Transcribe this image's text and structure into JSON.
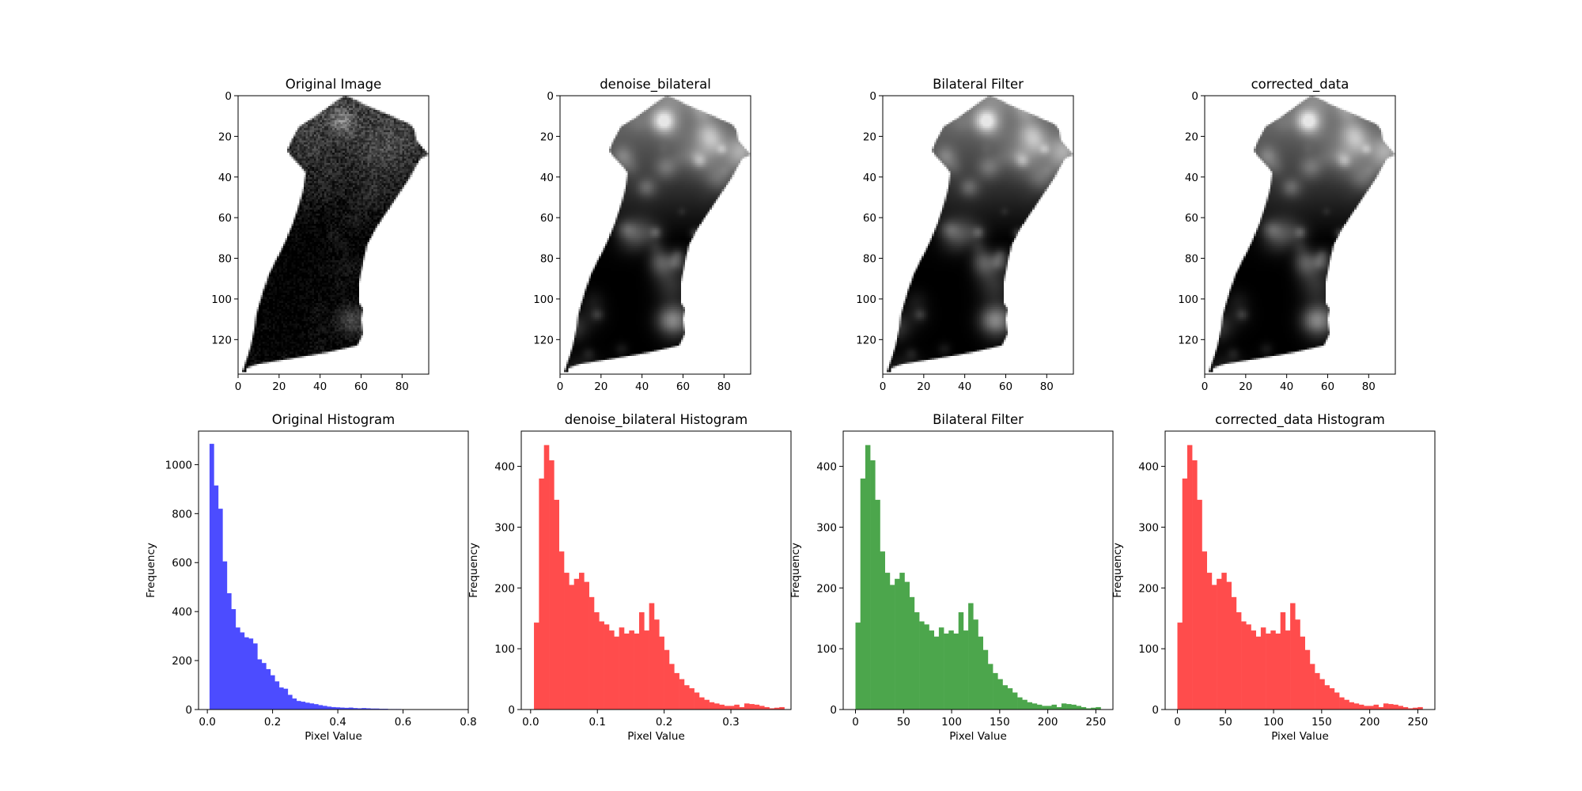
{
  "figure": {
    "background": "#ffffff",
    "panels": [
      {
        "title": "Original Image",
        "cmap": "gray",
        "seed": 11,
        "smooth": 0
      },
      {
        "title": "denoise_bilateral",
        "cmap": "gray",
        "seed": 23,
        "smooth": 1
      },
      {
        "title": "Bilateral Filter",
        "cmap": "gray",
        "seed": 23,
        "smooth": 1
      },
      {
        "title": "corrected_data",
        "cmap": "gray",
        "seed": 23,
        "smooth": 1
      }
    ]
  },
  "chart_data": [
    {
      "type": "image",
      "title": "Original Image",
      "xlim": [
        0,
        93
      ],
      "ylim": [
        137,
        0
      ],
      "xticks": [
        0,
        20,
        40,
        60,
        80
      ],
      "yticks": [
        0,
        20,
        40,
        60,
        80,
        100,
        120
      ],
      "mask_outline": [
        [
          52,
          0
        ],
        [
          55,
          1
        ],
        [
          61,
          4
        ],
        [
          84,
          14
        ],
        [
          86,
          17
        ],
        [
          87,
          22
        ],
        [
          93,
          29
        ],
        [
          89,
          31
        ],
        [
          86,
          36
        ],
        [
          84,
          40
        ],
        [
          80,
          46
        ],
        [
          74,
          55
        ],
        [
          68,
          64
        ],
        [
          63,
          73
        ],
        [
          61,
          82
        ],
        [
          59,
          92
        ],
        [
          59,
          102
        ],
        [
          61,
          105
        ],
        [
          60,
          110
        ],
        [
          61,
          117
        ],
        [
          58,
          123
        ],
        [
          45,
          126
        ],
        [
          28,
          129
        ],
        [
          10,
          132
        ],
        [
          4,
          134
        ],
        [
          4,
          136
        ],
        [
          2,
          136
        ],
        [
          4,
          130
        ],
        [
          6,
          124
        ],
        [
          8,
          115
        ],
        [
          9,
          107
        ],
        [
          12,
          97
        ],
        [
          15,
          88
        ],
        [
          19,
          80
        ],
        [
          23,
          72
        ],
        [
          27,
          62
        ],
        [
          30,
          53
        ],
        [
          32,
          45
        ],
        [
          33,
          38
        ],
        [
          30,
          34
        ],
        [
          26,
          30
        ],
        [
          24,
          27
        ],
        [
          26,
          22
        ],
        [
          30,
          15
        ],
        [
          38,
          10
        ],
        [
          46,
          4
        ]
      ]
    },
    {
      "type": "image",
      "title": "denoise_bilateral",
      "xlim": [
        0,
        93
      ],
      "ylim": [
        137,
        0
      ],
      "xticks": [
        0,
        20,
        40,
        60,
        80
      ],
      "yticks": [
        0,
        20,
        40,
        60,
        80,
        100,
        120
      ],
      "mask_outline": [
        [
          52,
          0
        ],
        [
          55,
          1
        ],
        [
          61,
          4
        ],
        [
          84,
          14
        ],
        [
          86,
          17
        ],
        [
          87,
          22
        ],
        [
          93,
          29
        ],
        [
          89,
          31
        ],
        [
          86,
          36
        ],
        [
          84,
          40
        ],
        [
          80,
          46
        ],
        [
          74,
          55
        ],
        [
          68,
          64
        ],
        [
          63,
          73
        ],
        [
          61,
          82
        ],
        [
          59,
          92
        ],
        [
          59,
          102
        ],
        [
          61,
          105
        ],
        [
          60,
          110
        ],
        [
          61,
          117
        ],
        [
          58,
          123
        ],
        [
          45,
          126
        ],
        [
          28,
          129
        ],
        [
          10,
          132
        ],
        [
          4,
          134
        ],
        [
          4,
          136
        ],
        [
          2,
          136
        ],
        [
          4,
          130
        ],
        [
          6,
          124
        ],
        [
          8,
          115
        ],
        [
          9,
          107
        ],
        [
          12,
          97
        ],
        [
          15,
          88
        ],
        [
          19,
          80
        ],
        [
          23,
          72
        ],
        [
          27,
          62
        ],
        [
          30,
          53
        ],
        [
          32,
          45
        ],
        [
          33,
          38
        ],
        [
          30,
          34
        ],
        [
          26,
          30
        ],
        [
          24,
          27
        ],
        [
          26,
          22
        ],
        [
          30,
          15
        ],
        [
          38,
          10
        ],
        [
          46,
          4
        ]
      ]
    },
    {
      "type": "image",
      "title": "Bilateral Filter",
      "xlim": [
        0,
        93
      ],
      "ylim": [
        137,
        0
      ],
      "xticks": [
        0,
        20,
        40,
        60,
        80
      ],
      "yticks": [
        0,
        20,
        40,
        60,
        80,
        100,
        120
      ],
      "mask_outline": [
        [
          52,
          0
        ],
        [
          55,
          1
        ],
        [
          61,
          4
        ],
        [
          84,
          14
        ],
        [
          86,
          17
        ],
        [
          87,
          22
        ],
        [
          93,
          29
        ],
        [
          89,
          31
        ],
        [
          86,
          36
        ],
        [
          84,
          40
        ],
        [
          80,
          46
        ],
        [
          74,
          55
        ],
        [
          68,
          64
        ],
        [
          63,
          73
        ],
        [
          61,
          82
        ],
        [
          59,
          92
        ],
        [
          59,
          102
        ],
        [
          61,
          105
        ],
        [
          60,
          110
        ],
        [
          61,
          117
        ],
        [
          58,
          123
        ],
        [
          45,
          126
        ],
        [
          28,
          129
        ],
        [
          10,
          132
        ],
        [
          4,
          134
        ],
        [
          4,
          136
        ],
        [
          2,
          136
        ],
        [
          4,
          130
        ],
        [
          6,
          124
        ],
        [
          8,
          115
        ],
        [
          9,
          107
        ],
        [
          12,
          97
        ],
        [
          15,
          88
        ],
        [
          19,
          80
        ],
        [
          23,
          72
        ],
        [
          27,
          62
        ],
        [
          30,
          53
        ],
        [
          32,
          45
        ],
        [
          33,
          38
        ],
        [
          30,
          34
        ],
        [
          26,
          30
        ],
        [
          24,
          27
        ],
        [
          26,
          22
        ],
        [
          30,
          15
        ],
        [
          38,
          10
        ],
        [
          46,
          4
        ]
      ]
    },
    {
      "type": "image",
      "title": "corrected_data",
      "xlim": [
        0,
        93
      ],
      "ylim": [
        137,
        0
      ],
      "xticks": [
        0,
        20,
        40,
        60,
        80
      ],
      "yticks": [
        0,
        20,
        40,
        60,
        80,
        100,
        120
      ],
      "mask_outline": [
        [
          52,
          0
        ],
        [
          55,
          1
        ],
        [
          61,
          4
        ],
        [
          84,
          14
        ],
        [
          86,
          17
        ],
        [
          87,
          22
        ],
        [
          93,
          29
        ],
        [
          89,
          31
        ],
        [
          86,
          36
        ],
        [
          84,
          40
        ],
        [
          80,
          46
        ],
        [
          74,
          55
        ],
        [
          68,
          64
        ],
        [
          63,
          73
        ],
        [
          61,
          82
        ],
        [
          59,
          92
        ],
        [
          59,
          102
        ],
        [
          61,
          105
        ],
        [
          60,
          110
        ],
        [
          61,
          117
        ],
        [
          58,
          123
        ],
        [
          45,
          126
        ],
        [
          28,
          129
        ],
        [
          10,
          132
        ],
        [
          4,
          134
        ],
        [
          4,
          136
        ],
        [
          2,
          136
        ],
        [
          4,
          130
        ],
        [
          6,
          124
        ],
        [
          8,
          115
        ],
        [
          9,
          107
        ],
        [
          12,
          97
        ],
        [
          15,
          88
        ],
        [
          19,
          80
        ],
        [
          23,
          72
        ],
        [
          27,
          62
        ],
        [
          30,
          53
        ],
        [
          32,
          45
        ],
        [
          33,
          38
        ],
        [
          30,
          34
        ],
        [
          26,
          30
        ],
        [
          24,
          27
        ],
        [
          26,
          22
        ],
        [
          30,
          15
        ],
        [
          38,
          10
        ],
        [
          46,
          4
        ]
      ]
    },
    {
      "type": "histogram",
      "title": "Original Histogram",
      "xlabel": "Pixel Value",
      "ylabel": "Frequency",
      "color": "#4c4cff",
      "bin_width": 0.0133,
      "xlim": [
        -0.027,
        0.8
      ],
      "ylim": [
        0,
        1137
      ],
      "xticks": [
        0.0,
        0.2,
        0.4,
        0.6,
        0.8
      ],
      "xtick_labels": [
        "0.0",
        "0.2",
        "0.4",
        "0.6",
        "0.8"
      ],
      "yticks": [
        0,
        200,
        400,
        600,
        800,
        1000
      ],
      "bins_start": [
        0.0067,
        0.02,
        0.0333,
        0.0467,
        0.06,
        0.0733,
        0.0867,
        0.1,
        0.1133,
        0.1267,
        0.14,
        0.1533,
        0.1667,
        0.18,
        0.1933,
        0.2067,
        0.22,
        0.2333,
        0.2467,
        0.26,
        0.2733,
        0.2867,
        0.3,
        0.3133,
        0.3267,
        0.34,
        0.3533,
        0.3667,
        0.38,
        0.3933,
        0.4067,
        0.42,
        0.4333,
        0.4467,
        0.46,
        0.4733,
        0.4867,
        0.5,
        0.5133,
        0.5267,
        0.54,
        0.5533,
        0.5667,
        0.58,
        0.5933,
        0.6067,
        0.62,
        0.6333,
        0.6467,
        0.66,
        0.6733,
        0.6867,
        0.7,
        0.7133,
        0.7267,
        0.74,
        0.7533
      ],
      "counts": [
        1085,
        915,
        820,
        605,
        475,
        410,
        335,
        315,
        295,
        290,
        270,
        205,
        190,
        165,
        140,
        115,
        90,
        85,
        60,
        45,
        35,
        32,
        28,
        25,
        22,
        18,
        15,
        12,
        10,
        9,
        8,
        7,
        8,
        6,
        5,
        6,
        5,
        4,
        4,
        3,
        3,
        2,
        2,
        2,
        1,
        1,
        1,
        1,
        0,
        1,
        0,
        0,
        1,
        0,
        0,
        0,
        1
      ]
    },
    {
      "type": "histogram",
      "title": "denoise_bilateral Histogram",
      "xlabel": "Pixel Value",
      "ylabel": "Frequency",
      "color": "#ff4c4c",
      "bin_width": 0.0075,
      "xlim": [
        -0.014,
        0.39
      ],
      "ylim": [
        0,
        458
      ],
      "xticks": [
        0.0,
        0.1,
        0.2,
        0.3
      ],
      "xtick_labels": [
        "0.0",
        "0.1",
        "0.2",
        "0.3"
      ],
      "yticks": [
        0,
        100,
        200,
        300,
        400
      ],
      "bins_start": [
        0.005,
        0.0125,
        0.02,
        0.0275,
        0.035,
        0.0425,
        0.05,
        0.0575,
        0.065,
        0.0725,
        0.08,
        0.0875,
        0.095,
        0.1025,
        0.11,
        0.1175,
        0.125,
        0.1325,
        0.14,
        0.1475,
        0.155,
        0.1625,
        0.17,
        0.1775,
        0.185,
        0.1925,
        0.2,
        0.2075,
        0.215,
        0.2225,
        0.23,
        0.2375,
        0.245,
        0.2525,
        0.26,
        0.2675,
        0.275,
        0.2825,
        0.29,
        0.2975,
        0.305,
        0.3125,
        0.32,
        0.3275,
        0.335,
        0.3425,
        0.35,
        0.3575,
        0.365,
        0.3725
      ],
      "counts": [
        143,
        380,
        435,
        410,
        345,
        260,
        225,
        205,
        215,
        225,
        210,
        185,
        160,
        145,
        140,
        130,
        120,
        135,
        125,
        130,
        125,
        160,
        130,
        175,
        148,
        120,
        98,
        75,
        60,
        50,
        40,
        35,
        28,
        20,
        16,
        12,
        10,
        8,
        6,
        6,
        8,
        4,
        10,
        9,
        8,
        6,
        4,
        2,
        3,
        4
      ]
    },
    {
      "type": "histogram",
      "title": "Bilateral Filter",
      "xlabel": "Pixel Value",
      "ylabel": "Frequency",
      "color": "#4ca64c",
      "bin_width": 5.1,
      "xlim": [
        -12.75,
        267.75
      ],
      "ylim": [
        0,
        458
      ],
      "xticks": [
        0,
        50,
        100,
        150,
        200,
        250
      ],
      "xtick_labels": [
        "0",
        "50",
        "100",
        "150",
        "200",
        "250"
      ],
      "yticks": [
        0,
        100,
        200,
        300,
        400
      ],
      "bins_start": [
        0,
        5.1,
        10.2,
        15.3,
        20.4,
        25.5,
        30.6,
        35.7,
        40.8,
        45.9,
        51,
        56.1,
        61.2,
        66.3,
        71.4,
        76.5,
        81.6,
        86.7,
        91.8,
        96.9,
        102,
        107.1,
        112.2,
        117.3,
        122.4,
        127.5,
        132.6,
        137.7,
        142.8,
        147.9,
        153,
        158.1,
        163.2,
        168.3,
        173.4,
        178.5,
        183.6,
        188.7,
        193.8,
        198.9,
        204,
        209.1,
        214.2,
        219.3,
        224.4,
        229.5,
        234.6,
        239.7,
        244.8,
        249.9
      ],
      "counts": [
        143,
        380,
        435,
        410,
        345,
        260,
        225,
        205,
        215,
        225,
        210,
        185,
        160,
        145,
        140,
        130,
        120,
        135,
        125,
        130,
        125,
        160,
        130,
        175,
        148,
        120,
        98,
        75,
        60,
        50,
        40,
        35,
        28,
        20,
        16,
        12,
        10,
        8,
        6,
        6,
        8,
        4,
        10,
        9,
        8,
        6,
        4,
        2,
        3,
        4
      ]
    },
    {
      "type": "histogram",
      "title": "corrected_data Histogram",
      "xlabel": "Pixel Value",
      "ylabel": "Frequency",
      "color": "#ff4c4c",
      "bin_width": 5.1,
      "xlim": [
        -12.75,
        267.75
      ],
      "ylim": [
        0,
        458
      ],
      "xticks": [
        0,
        50,
        100,
        150,
        200,
        250
      ],
      "xtick_labels": [
        "0",
        "50",
        "100",
        "150",
        "200",
        "250"
      ],
      "yticks": [
        0,
        100,
        200,
        300,
        400
      ],
      "bins_start": [
        0,
        5.1,
        10.2,
        15.3,
        20.4,
        25.5,
        30.6,
        35.7,
        40.8,
        45.9,
        51,
        56.1,
        61.2,
        66.3,
        71.4,
        76.5,
        81.6,
        86.7,
        91.8,
        96.9,
        102,
        107.1,
        112.2,
        117.3,
        122.4,
        127.5,
        132.6,
        137.7,
        142.8,
        147.9,
        153,
        158.1,
        163.2,
        168.3,
        173.4,
        178.5,
        183.6,
        188.7,
        193.8,
        198.9,
        204,
        209.1,
        214.2,
        219.3,
        224.4,
        229.5,
        234.6,
        239.7,
        244.8,
        249.9
      ],
      "counts": [
        143,
        380,
        435,
        410,
        345,
        260,
        225,
        205,
        215,
        225,
        210,
        185,
        160,
        145,
        140,
        130,
        120,
        135,
        125,
        130,
        125,
        160,
        130,
        175,
        148,
        120,
        98,
        75,
        60,
        50,
        40,
        35,
        28,
        20,
        16,
        12,
        10,
        8,
        6,
        6,
        8,
        4,
        10,
        9,
        8,
        6,
        4,
        2,
        3,
        4
      ]
    }
  ]
}
